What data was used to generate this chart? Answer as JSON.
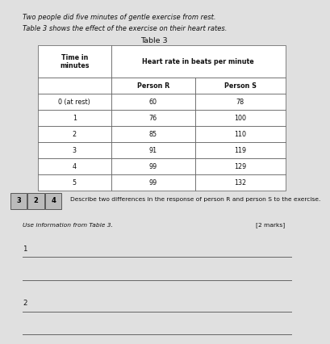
{
  "background_color": "#e0e0e0",
  "top_text1": "Two people did five minutes of gentle exercise from rest.",
  "top_text2": "Table 3 shows the effect of the exercise on their heart rates.",
  "table_title": "Table 3",
  "col_header1": "Time in\nminutes",
  "col_header2": "Heart rate in beats per minute",
  "col_subheader1": "Person R",
  "col_subheader2": "Person S",
  "table_data": [
    [
      "0 (at rest)",
      "60",
      "78"
    ],
    [
      "1",
      "76",
      "100"
    ],
    [
      "2",
      "85",
      "110"
    ],
    [
      "3",
      "91",
      "119"
    ],
    [
      "4",
      "99",
      "129"
    ],
    [
      "5",
      "99",
      "132"
    ]
  ],
  "question_box": [
    "3",
    "2",
    "4"
  ],
  "question_text": "Describe two differences in the response of person R and person S to the exercise.",
  "use_text": "Use information from Table 3.",
  "marks_text": "[2 marks]",
  "answer_label1": "1",
  "answer_label2": "2",
  "num_lines1": 2,
  "num_lines2": 2,
  "line_color": "#666666",
  "line_lw": 0.7
}
